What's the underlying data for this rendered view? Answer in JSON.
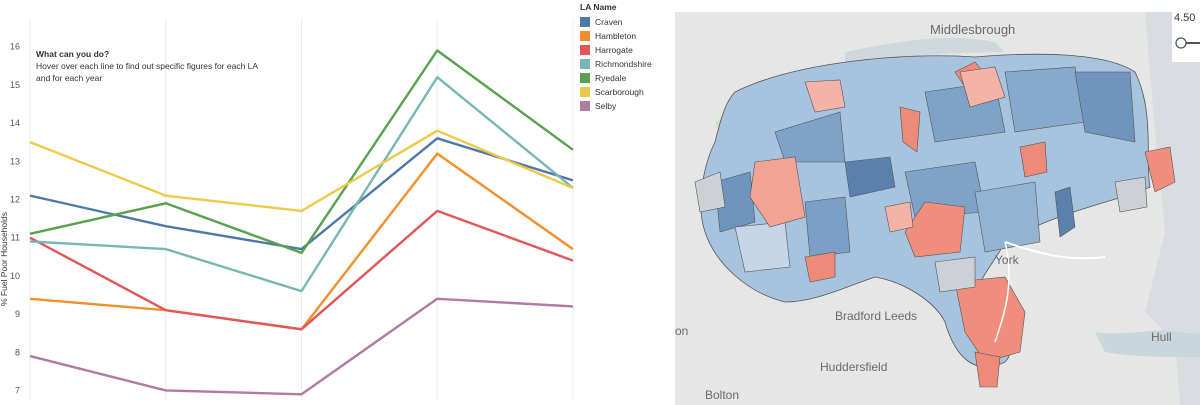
{
  "chart_data": {
    "type": "line",
    "ylabel": "% Fuel Poor Households",
    "ylim": [
      6.75,
      16.75
    ],
    "yticks": [
      "7",
      "8",
      "9",
      "10",
      "11",
      "12",
      "13",
      "14",
      "15",
      "16"
    ],
    "x": [
      0,
      1,
      2,
      3,
      4
    ],
    "series": [
      {
        "name": "Craven",
        "color": "#4e79a7",
        "values": [
          12.1,
          11.3,
          10.7,
          13.6,
          12.5
        ]
      },
      {
        "name": "Hambleton",
        "color": "#f28e2b",
        "values": [
          9.4,
          9.1,
          8.6,
          13.2,
          10.7
        ]
      },
      {
        "name": "Harrogate",
        "color": "#e15759",
        "values": [
          11.0,
          9.1,
          8.6,
          11.7,
          10.4
        ]
      },
      {
        "name": "Richmondshire",
        "color": "#76b7b2",
        "values": [
          10.9,
          10.7,
          9.6,
          15.2,
          12.3
        ]
      },
      {
        "name": "Ryedale",
        "color": "#59a14f",
        "values": [
          11.1,
          11.9,
          10.6,
          15.9,
          13.3
        ]
      },
      {
        "name": "Scarborough",
        "color": "#edc948",
        "values": [
          13.5,
          12.1,
          11.7,
          13.8,
          12.3
        ]
      },
      {
        "name": "Selby",
        "color": "#b07aa1",
        "values": [
          7.9,
          7.0,
          6.9,
          9.4,
          9.2
        ]
      }
    ]
  },
  "legend": {
    "title": "LA Name"
  },
  "annotation": {
    "title": "What can you do?",
    "line1": "Hover over each line to find out specific figures for each LA",
    "line2": "and for each year"
  },
  "map": {
    "labels": {
      "middlesbrough": "Middlesbrough",
      "york": "York",
      "bradford_leeds": "Bradford Leeds",
      "huddersfield": "Huddersfield",
      "hull": "Hull",
      "bolton": "Bolton",
      "lincoln_partial": "on"
    },
    "zoom_value": "4.50"
  }
}
